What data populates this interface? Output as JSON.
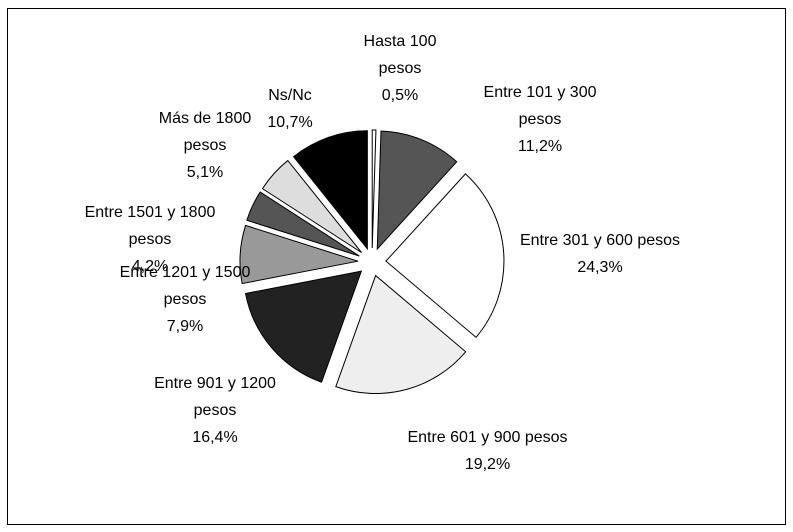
{
  "chart_data": {
    "type": "pie",
    "categories": [
      "Hasta 100 pesos",
      "Entre 101 y 300 pesos",
      "Entre 301 y 600 pesos",
      "Entre 601 y 900 pesos",
      "Entre 901 y 1200 pesos",
      "Entre 1201 y 1500 pesos",
      "Entre 1501 y 1800 pesos",
      "Más de 1800 pesos",
      "Ns/Nc"
    ],
    "values": [
      0.5,
      11.2,
      24.3,
      19.2,
      16.4,
      7.9,
      4.2,
      5.1,
      10.7
    ],
    "value_labels": [
      "0,5%",
      "11,2%",
      "24,3%",
      "19,2%",
      "16,4%",
      "7,9%",
      "4,2%",
      "5,1%",
      "10,7%"
    ],
    "colors": [
      "#ffffff",
      "#555555",
      "#ffffff",
      "#eeeeee",
      "#222222",
      "#999999",
      "#555555",
      "#dddddd",
      "#000000"
    ]
  }
}
